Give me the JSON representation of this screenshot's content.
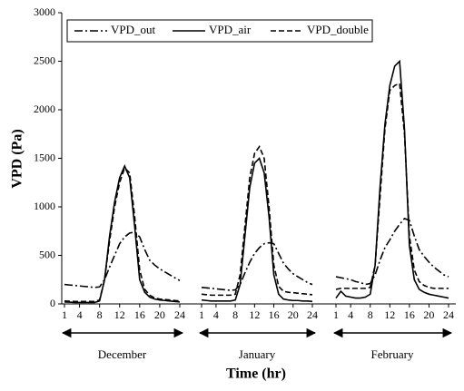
{
  "chart_data": {
    "type": "line",
    "xlabel": "Time (hr)",
    "ylabel": "VPD (Pa)",
    "ylim": [
      0,
      3000
    ],
    "yticks": [
      0,
      500,
      1000,
      1500,
      2000,
      2500,
      3000
    ],
    "xlim": [
      1,
      24
    ],
    "xticks": [
      1,
      4,
      8,
      12,
      16,
      20,
      24
    ],
    "x": [
      1,
      2,
      3,
      4,
      5,
      6,
      7,
      8,
      9,
      10,
      11,
      12,
      13,
      14,
      15,
      16,
      17,
      18,
      19,
      20,
      21,
      22,
      23,
      24
    ],
    "periods": [
      "December",
      "January",
      "February"
    ],
    "legend": "top-left",
    "series": [
      {
        "name": "VPD_out",
        "color": "#000000",
        "dash": "dashdot",
        "values": [
          [
            200,
            195,
            190,
            185,
            180,
            175,
            170,
            175,
            250,
            380,
            500,
            620,
            690,
            730,
            740,
            690,
            560,
            450,
            400,
            360,
            330,
            300,
            270,
            240
          ],
          [
            170,
            165,
            160,
            155,
            150,
            145,
            140,
            145,
            200,
            320,
            430,
            520,
            580,
            620,
            630,
            620,
            520,
            420,
            360,
            310,
            280,
            250,
            220,
            200
          ],
          [
            280,
            270,
            260,
            250,
            230,
            220,
            200,
            210,
            300,
            450,
            580,
            660,
            750,
            820,
            880,
            860,
            700,
            560,
            490,
            430,
            380,
            340,
            300,
            280
          ]
        ]
      },
      {
        "name": "VPD_air",
        "color": "#000000",
        "dash": "solid",
        "values": [
          [
            20,
            18,
            15,
            15,
            15,
            15,
            15,
            30,
            250,
            700,
            1050,
            1300,
            1420,
            1300,
            800,
            250,
            120,
            70,
            50,
            40,
            35,
            30,
            25,
            20
          ],
          [
            40,
            35,
            30,
            30,
            30,
            30,
            30,
            40,
            200,
            700,
            1200,
            1450,
            1500,
            1350,
            900,
            300,
            100,
            50,
            40,
            35,
            35,
            30,
            30,
            25
          ],
          [
            60,
            130,
            80,
            70,
            60,
            60,
            70,
            100,
            400,
            1200,
            1850,
            2250,
            2450,
            2500,
            1800,
            600,
            250,
            150,
            120,
            100,
            90,
            80,
            70,
            60
          ]
        ]
      },
      {
        "name": "VPD_double",
        "color": "#000000",
        "dash": "dashed",
        "values": [
          [
            30,
            28,
            25,
            25,
            25,
            25,
            25,
            40,
            250,
            650,
            1000,
            1250,
            1400,
            1350,
            900,
            350,
            150,
            90,
            60,
            50,
            45,
            40,
            35,
            30
          ],
          [
            100,
            95,
            90,
            90,
            90,
            90,
            90,
            100,
            300,
            800,
            1300,
            1550,
            1620,
            1500,
            1000,
            400,
            180,
            130,
            120,
            115,
            110,
            105,
            100,
            95
          ],
          [
            150,
            160,
            160,
            160,
            160,
            160,
            160,
            170,
            400,
            1100,
            1800,
            2200,
            2250,
            2270,
            1750,
            700,
            350,
            230,
            190,
            170,
            160,
            160,
            160,
            160
          ]
        ]
      }
    ]
  }
}
